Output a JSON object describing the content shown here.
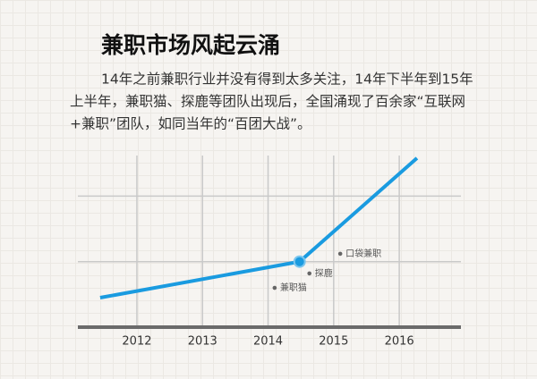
{
  "chart_data": {
    "type": "line",
    "title": "兼职市场风起云涌",
    "paragraph": [
      "14年之前兼职行业并没有得到太多关注，14年下半年到15年",
      "上半年，兼职猫、探鹿等团队出现后，全国涌现了百余家“互联网",
      "+兼职”团队，如同当年的“百团大战”。"
    ],
    "x": [
      2011.44,
      2014.48,
      2016.27
    ],
    "series": [
      {
        "color": "#1a9be0",
        "values": [
          0.45,
          1.0,
          2.58
        ]
      }
    ],
    "marker_index": 1,
    "annotations": [
      {
        "text": "兼职猫",
        "x": 2014.1,
        "y": 0.6
      },
      {
        "text": "探鹿",
        "x": 2014.63,
        "y": 0.82
      },
      {
        "text": "口袋兼职",
        "x": 2015.1,
        "y": 1.12
      }
    ],
    "xlim": [
      2011.1,
      2016.94
    ],
    "xticks": [
      2012,
      2013,
      2014,
      2015,
      2016
    ],
    "ylim": [
      0,
      2.62
    ],
    "yticks": [
      1,
      2
    ],
    "grid": true
  }
}
